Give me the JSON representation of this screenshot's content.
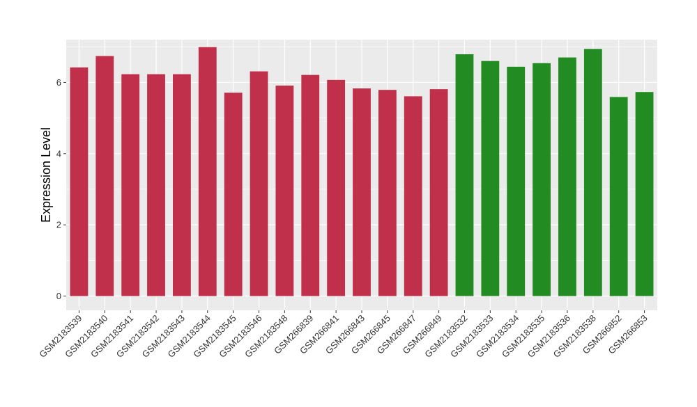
{
  "chart_data": {
    "type": "bar",
    "ylabel": "Expression Level",
    "xlabel": "",
    "ylim": [
      -0.4,
      7.2
    ],
    "yticks": [
      0,
      2,
      4,
      6
    ],
    "grid": true,
    "colors": {
      "group_a": "#c0304b",
      "group_b": "#228b22",
      "panel_bg": "#ebebeb",
      "grid_line": "#ffffff"
    },
    "categories": [
      "GSM2183539",
      "GSM2183540",
      "GSM2183541",
      "GSM2183542",
      "GSM2183543",
      "GSM2183544",
      "GSM2183545",
      "GSM2183546",
      "GSM2183548",
      "GSM266839",
      "GSM266841",
      "GSM266843",
      "GSM266845",
      "GSM266847",
      "GSM266849",
      "GSM2183532",
      "GSM2183533",
      "GSM2183534",
      "GSM2183535",
      "GSM2183536",
      "GSM2183538",
      "GSM266852",
      "GSM266853"
    ],
    "values": [
      6.42,
      6.74,
      6.23,
      6.23,
      6.23,
      6.99,
      5.71,
      6.31,
      5.91,
      6.21,
      6.07,
      5.83,
      5.79,
      5.61,
      5.81,
      6.79,
      6.6,
      6.44,
      6.54,
      6.7,
      6.94,
      5.59,
      5.73
    ],
    "groups": [
      "a",
      "a",
      "a",
      "a",
      "a",
      "a",
      "a",
      "a",
      "a",
      "a",
      "a",
      "a",
      "a",
      "a",
      "a",
      "b",
      "b",
      "b",
      "b",
      "b",
      "b",
      "b",
      "b"
    ]
  }
}
